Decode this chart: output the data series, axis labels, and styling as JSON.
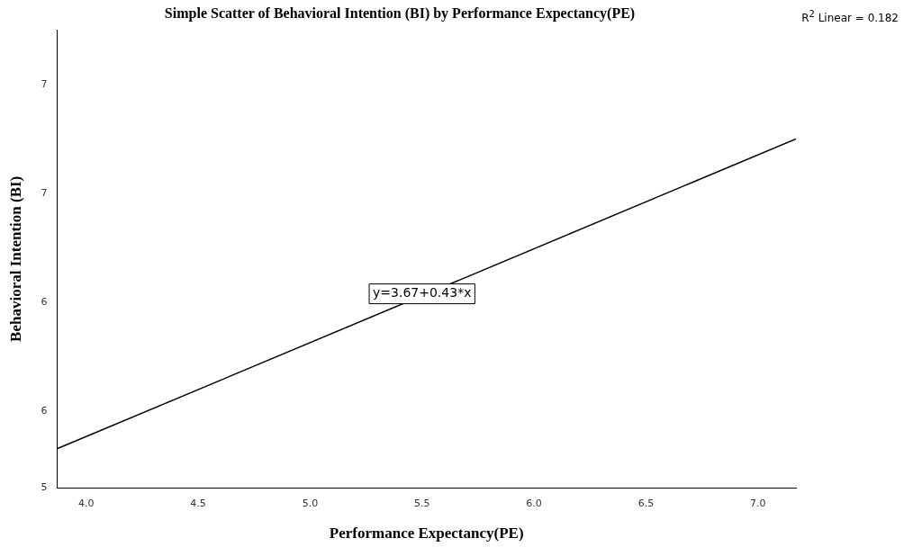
{
  "chart_data": {
    "type": "scatter",
    "title": "Simple Scatter of Behavioral Intention (BI) by Performance Expectancy(PE)",
    "xlabel": "Performance Expectancy(PE)",
    "ylabel": "Behavioral Intention (BI)",
    "series": [
      {
        "type": "line",
        "color": "#000000",
        "x": [
          3.87,
          7.17
        ],
        "values": [
          5.33,
          6.75
        ]
      }
    ],
    "xlim": [
      3.87,
      7.17
    ],
    "xticks": [
      {
        "value": 4,
        "label": "4.0"
      },
      {
        "value": 4.5,
        "label": "4.5"
      },
      {
        "value": 5,
        "label": "5.0"
      },
      {
        "value": 5.5,
        "label": "5.5"
      },
      {
        "value": 6,
        "label": "6.0"
      },
      {
        "value": 6.5,
        "label": "6.5"
      },
      {
        "value": 7,
        "label": "7.0"
      }
    ],
    "ylim": [
      5.15,
      7.25
    ],
    "yticks": [
      {
        "value": 5.15,
        "label": "5"
      },
      {
        "value": 5.5,
        "label": "6"
      },
      {
        "value": 6,
        "label": "6"
      },
      {
        "value": 6.5,
        "label": "7"
      },
      {
        "value": 7,
        "label": "7"
      }
    ],
    "annotations": [
      "R$^{2}$ Linear = 0.182",
      {
        "text": "y=3.67+0.43*x",
        "x": 5.5,
        "y": 6.04
      }
    ],
    "marker": "none",
    "line_style": "solid",
    "grid": false,
    "legend": false
  }
}
